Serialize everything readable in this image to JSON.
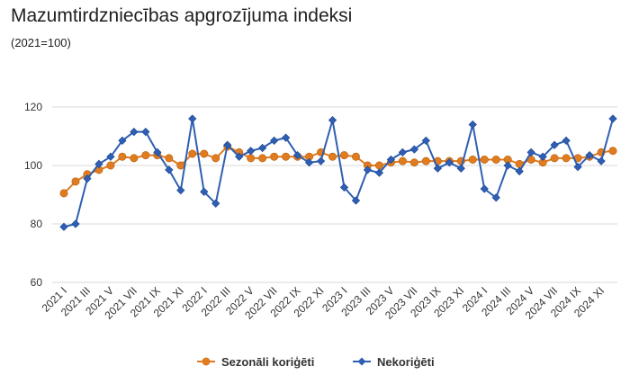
{
  "chart_data": {
    "type": "line",
    "title": "Mazumtirdzniecības apgrozījuma indeksi",
    "subtitle": "(2021=100)",
    "xlabel": "",
    "ylabel": "",
    "ylim": [
      60,
      120
    ],
    "yticks": [
      60,
      80,
      100,
      120
    ],
    "grid": true,
    "legend_position": "bottom",
    "x": [
      "2021 I",
      "2021 II",
      "2021 III",
      "2021 IV",
      "2021 V",
      "2021 VI",
      "2021 VII",
      "2021 VIII",
      "2021 IX",
      "2021 X",
      "2021 XI",
      "2021 XII",
      "2022 I",
      "2022 II",
      "2022 III",
      "2022 IV",
      "2022 V",
      "2022 VI",
      "2022 VII",
      "2022 VIII",
      "2022 IX",
      "2022 X",
      "2022 XI",
      "2022 XII",
      "2023 I",
      "2023 II",
      "2023 III",
      "2023 IV",
      "2023 V",
      "2023 VI",
      "2023 VII",
      "2023 VIII",
      "2023 IX",
      "2023 X",
      "2023 XI",
      "2023 XII",
      "2024 I",
      "2024 II",
      "2024 III",
      "2024 IV",
      "2024 V",
      "2024 VI",
      "2024 VII",
      "2024 VIII",
      "2024 IX",
      "2024 X",
      "2024 XI",
      "2024 XII"
    ],
    "x_tick_labels": [
      "2021 I",
      "2021 III",
      "2021 V",
      "2021 VII",
      "2021 IX",
      "2021 XI",
      "2022 I",
      "2022 III",
      "2022 V",
      "2022 VII",
      "2022 IX",
      "2022 XI",
      "2023 I",
      "2023 III",
      "2023 V",
      "2023 VII",
      "2023 IX",
      "2023 XI",
      "2024 I",
      "2024 III",
      "2024 V",
      "2024 VII",
      "2024 IX",
      "2024 XI"
    ],
    "series": [
      {
        "name": "Sezonāli koriģēti",
        "color": "#e07b1f",
        "marker": "circle",
        "values": [
          90.5,
          94.5,
          97.0,
          98.5,
          100.0,
          103.0,
          102.5,
          103.5,
          103.5,
          102.5,
          100.0,
          104.0,
          104.0,
          102.5,
          106.5,
          104.5,
          102.5,
          102.5,
          103.0,
          103.0,
          103.0,
          103.0,
          104.5,
          103.0,
          103.5,
          103.0,
          100.0,
          100.0,
          101.0,
          101.5,
          101.0,
          101.5,
          101.5,
          101.5,
          101.5,
          102.0,
          102.0,
          102.0,
          102.0,
          100.5,
          102.0,
          101.0,
          102.5,
          102.5,
          102.5,
          103.0,
          104.5,
          105.0
        ]
      },
      {
        "name": "Nekoriģēti",
        "color": "#2e5fb3",
        "marker": "diamond",
        "values": [
          79.0,
          80.0,
          95.5,
          100.5,
          103.0,
          108.5,
          111.5,
          111.5,
          104.5,
          98.5,
          91.5,
          116.0,
          91.0,
          87.0,
          107.0,
          103.0,
          105.0,
          106.0,
          108.5,
          109.5,
          103.5,
          101.0,
          101.5,
          115.5,
          92.5,
          88.0,
          98.5,
          97.5,
          102.0,
          104.5,
          105.5,
          108.5,
          99.0,
          101.0,
          99.0,
          114.0,
          92.0,
          89.0,
          100.0,
          98.0,
          104.5,
          103.0,
          107.0,
          108.5,
          99.5,
          103.5,
          101.5,
          116.0
        ]
      }
    ]
  }
}
